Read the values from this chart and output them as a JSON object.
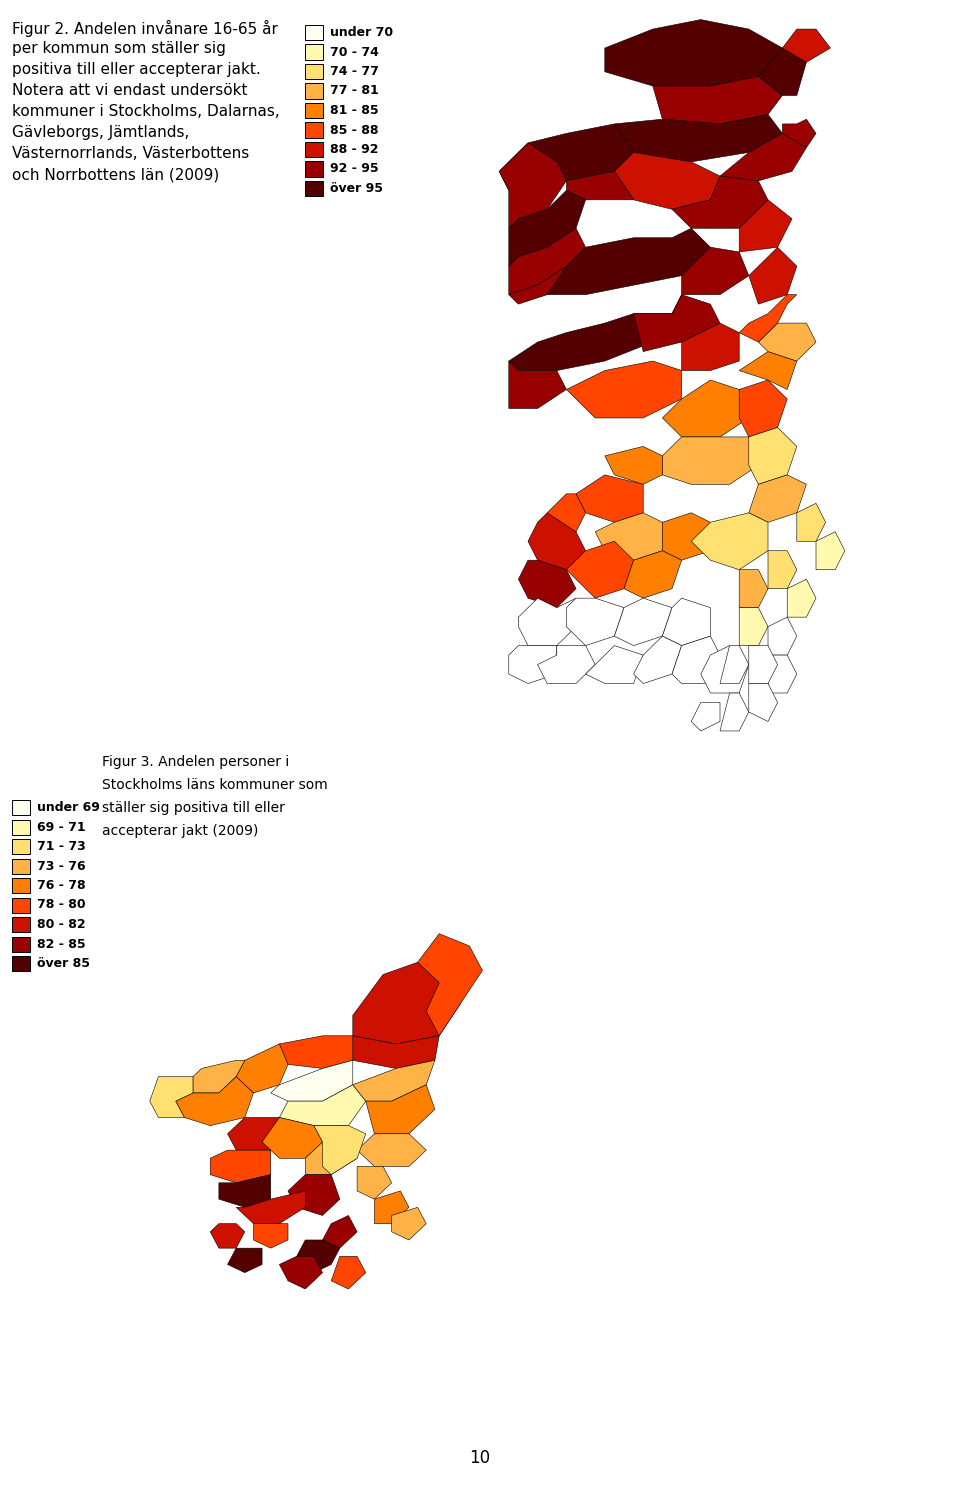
{
  "fig2_title": [
    "Figur 2. Andelen invånare 16-65 år",
    "per kommun som ställer sig",
    "positiva till eller accepterar jakt.",
    "Notera att vi endast undersökt",
    "kommuner i Stockholms, Dalarnas,",
    "Gävleborgs, Jämtlands,",
    "Västernorrlands, Västerbottens",
    "och Norrbottens län (2009)"
  ],
  "fig2_legend_labels": [
    "under 70",
    "70 - 74",
    "74 - 77",
    "77 - 81",
    "81 - 85",
    "85 - 88",
    "88 - 92",
    "92 - 95",
    "över 95"
  ],
  "fig2_legend_colors": [
    "#FFFFF0",
    "#FFFAB0",
    "#FFE070",
    "#FFB347",
    "#FF7F00",
    "#FF4500",
    "#CC1100",
    "#990000",
    "#550000"
  ],
  "fig3_title": [
    "Figur 3. Andelen personer i",
    "Stockholms läns kommuner som",
    "ställer sig positiva till eller",
    "accepterar jakt (2009)"
  ],
  "fig3_legend_labels": [
    "under 69",
    "69 - 71",
    "71 - 73",
    "73 - 76",
    "76 - 78",
    "78 - 80",
    "80 - 82",
    "82 - 85",
    "över 85"
  ],
  "fig3_legend_colors": [
    "#FFFFF0",
    "#FFFAB0",
    "#FFE070",
    "#FFB347",
    "#FF7F00",
    "#FF4500",
    "#CC1100",
    "#990000",
    "#550000"
  ],
  "page_number": "10",
  "background_color": "#ffffff",
  "text_fontsize": 11,
  "legend_fontsize": 9
}
